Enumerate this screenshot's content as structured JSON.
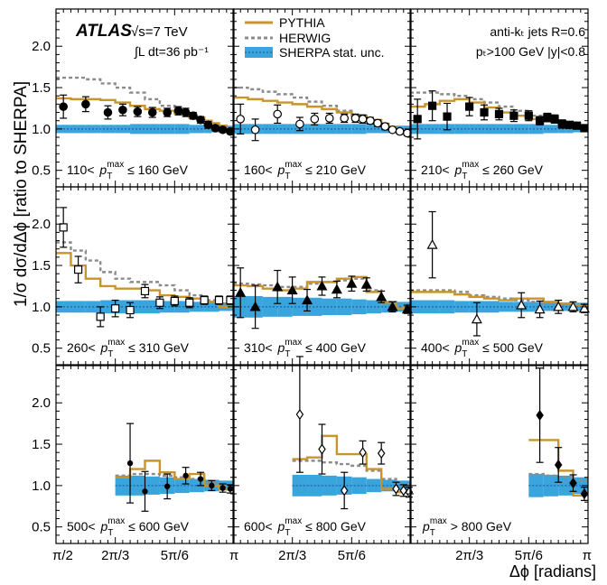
{
  "figure": {
    "ylabel": "1/σ dσ/dΔϕ [ratio to SHERPA]",
    "xlabel": "Δϕ [radians]",
    "atlas": {
      "brand": "ATLAS",
      "energy": "√s=7 TeV",
      "lumi": "∫L dt=36 pb⁻¹"
    },
    "legend": [
      "PYTHIA",
      "HERWIG",
      "SHERPA stat. unc."
    ],
    "jet_info": [
      "anti-kₜ jets R=0.6",
      "pₜ>100 GeV |y|<0.8"
    ],
    "y_ticks": [
      "0.5",
      "1.0",
      "1.5",
      "2.0"
    ],
    "x_ticks": [
      "π/2",
      "2π/3",
      "5π/6",
      "π"
    ]
  },
  "colors": {
    "pythia": "#c8952c",
    "herwig": "#8c8c8c",
    "sherpa_band": "#3aa4dd",
    "sherpa_line": "#1a4f9a"
  },
  "chart_data": {
    "type": "line",
    "x_unit": "radians",
    "xlim": [
      1.5708,
      3.1416
    ],
    "ylim": [
      0.3,
      2.45
    ],
    "panels": [
      {
        "label": "110< pT^max ≤ 160 GeV",
        "marker": "filled-circle",
        "x_start": 1.571,
        "edges": [
          1.571,
          1.702,
          1.833,
          1.963,
          2.094,
          2.225,
          2.356,
          2.487,
          2.618,
          2.749,
          2.88,
          2.945,
          3.01,
          3.076,
          3.142
        ],
        "pythia": [
          1.37,
          1.36,
          1.36,
          1.35,
          1.32,
          1.28,
          1.24,
          1.22,
          1.19,
          1.14,
          1.1,
          1.07,
          1.04,
          1.01
        ],
        "herwig": [
          1.62,
          1.62,
          1.6,
          1.55,
          1.5,
          1.44,
          1.36,
          1.28,
          1.2,
          1.13,
          1.06,
          1.03,
          1.01,
          0.99
        ],
        "band_hw": [
          0.05,
          0.05,
          0.05,
          0.05,
          0.05,
          0.06,
          0.06,
          0.06,
          0.06,
          0.05,
          0.05,
          0.04,
          0.04,
          0.04
        ],
        "points": [
          {
            "x": 1.636,
            "y": 1.27,
            "e": 0.14
          },
          {
            "x": 1.833,
            "y": 1.3,
            "e": 0.09
          },
          {
            "x": 2.029,
            "y": 1.2,
            "e": 0.08
          },
          {
            "x": 2.16,
            "y": 1.23,
            "e": 0.07
          },
          {
            "x": 2.291,
            "y": 1.21,
            "e": 0.06
          },
          {
            "x": 2.422,
            "y": 1.2,
            "e": 0.06
          },
          {
            "x": 2.553,
            "y": 1.2,
            "e": 0.05
          },
          {
            "x": 2.651,
            "y": 1.22,
            "e": 0.05
          },
          {
            "x": 2.716,
            "y": 1.2,
            "e": 0.05
          },
          {
            "x": 2.782,
            "y": 1.16,
            "e": 0.04
          },
          {
            "x": 2.847,
            "y": 1.11,
            "e": 0.04
          },
          {
            "x": 2.913,
            "y": 1.05,
            "e": 0.04
          },
          {
            "x": 2.978,
            "y": 1.01,
            "e": 0.03
          },
          {
            "x": 3.043,
            "y": 0.99,
            "e": 0.03
          },
          {
            "x": 3.109,
            "y": 0.97,
            "e": 0.03
          }
        ]
      },
      {
        "label": "160< pT^max ≤ 210 GeV",
        "marker": "open-circle",
        "x_start": 1.571,
        "edges": [
          1.571,
          1.702,
          1.833,
          1.963,
          2.094,
          2.225,
          2.356,
          2.487,
          2.618,
          2.749,
          2.88,
          2.945,
          3.01,
          3.076,
          3.142
        ],
        "pythia": [
          1.38,
          1.36,
          1.34,
          1.32,
          1.3,
          1.27,
          1.24,
          1.2,
          1.16,
          1.11,
          1.06,
          1.02,
          0.99,
          0.96
        ],
        "herwig": [
          1.5,
          1.48,
          1.45,
          1.42,
          1.38,
          1.33,
          1.28,
          1.22,
          1.16,
          1.1,
          1.04,
          1.0,
          0.97,
          0.95
        ],
        "band_hw": [
          0.06,
          0.06,
          0.06,
          0.06,
          0.06,
          0.06,
          0.06,
          0.06,
          0.06,
          0.05,
          0.05,
          0.04,
          0.04,
          0.04
        ],
        "points": [
          {
            "x": 1.636,
            "y": 1.12,
            "e": 0.18
          },
          {
            "x": 1.767,
            "y": 0.99,
            "e": 0.13
          },
          {
            "x": 1.963,
            "y": 1.18,
            "e": 0.11
          },
          {
            "x": 2.16,
            "y": 1.06,
            "e": 0.08
          },
          {
            "x": 2.291,
            "y": 1.12,
            "e": 0.07
          },
          {
            "x": 2.422,
            "y": 1.13,
            "e": 0.06
          },
          {
            "x": 2.553,
            "y": 1.13,
            "e": 0.05
          },
          {
            "x": 2.651,
            "y": 1.13,
            "e": 0.05
          },
          {
            "x": 2.716,
            "y": 1.12,
            "e": 0.05
          },
          {
            "x": 2.782,
            "y": 1.1,
            "e": 0.04
          },
          {
            "x": 2.847,
            "y": 1.07,
            "e": 0.04
          },
          {
            "x": 2.913,
            "y": 1.03,
            "e": 0.04
          },
          {
            "x": 2.978,
            "y": 0.99,
            "e": 0.03
          },
          {
            "x": 3.043,
            "y": 0.97,
            "e": 0.03
          },
          {
            "x": 3.109,
            "y": 0.95,
            "e": 0.03
          }
        ]
      },
      {
        "label": "210< pT^max ≤ 260 GeV",
        "marker": "filled-square",
        "x_start": 1.571,
        "edges": [
          1.571,
          1.702,
          1.833,
          1.963,
          2.094,
          2.225,
          2.356,
          2.487,
          2.618,
          2.749,
          2.88,
          2.945,
          3.01,
          3.076,
          3.142
        ],
        "pythia": [
          1.27,
          1.3,
          1.34,
          1.36,
          1.32,
          1.26,
          1.2,
          1.16,
          1.12,
          1.09,
          1.06,
          1.04,
          1.02,
          1.0
        ],
        "herwig": [
          1.44,
          1.44,
          1.42,
          1.4,
          1.36,
          1.32,
          1.27,
          1.22,
          1.16,
          1.1,
          1.04,
          1.02,
          1.0,
          0.98
        ],
        "band_hw": [
          0.06,
          0.06,
          0.06,
          0.06,
          0.06,
          0.06,
          0.06,
          0.06,
          0.06,
          0.05,
          0.05,
          0.05,
          0.04,
          0.04
        ],
        "points": [
          {
            "x": 1.636,
            "y": 1.12,
            "e": 0.24
          },
          {
            "x": 1.767,
            "y": 1.28,
            "e": 0.18
          },
          {
            "x": 1.898,
            "y": 1.15,
            "e": 0.16
          },
          {
            "x": 2.094,
            "y": 1.27,
            "e": 0.11
          },
          {
            "x": 2.225,
            "y": 1.2,
            "e": 0.09
          },
          {
            "x": 2.356,
            "y": 1.18,
            "e": 0.07
          },
          {
            "x": 2.487,
            "y": 1.16,
            "e": 0.07
          },
          {
            "x": 2.618,
            "y": 1.16,
            "e": 0.06
          },
          {
            "x": 2.716,
            "y": 1.1,
            "e": 0.05
          },
          {
            "x": 2.782,
            "y": 1.14,
            "e": 0.05
          },
          {
            "x": 2.847,
            "y": 1.12,
            "e": 0.05
          },
          {
            "x": 2.913,
            "y": 1.06,
            "e": 0.05
          },
          {
            "x": 2.978,
            "y": 1.05,
            "e": 0.04
          },
          {
            "x": 3.043,
            "y": 1.04,
            "e": 0.04
          },
          {
            "x": 3.109,
            "y": 1.01,
            "e": 0.04
          }
        ]
      },
      {
        "label": "260< pT^max ≤ 310 GeV",
        "marker": "open-square",
        "x_start": 1.571,
        "edges": [
          1.571,
          1.702,
          1.833,
          1.963,
          2.094,
          2.225,
          2.356,
          2.487,
          2.618,
          2.749,
          2.88,
          3.01,
          3.142
        ],
        "pythia": [
          1.65,
          1.5,
          1.34,
          1.25,
          1.22,
          1.22,
          1.2,
          1.14,
          1.12,
          1.1,
          1.06,
          1.0
        ],
        "herwig": [
          1.78,
          1.68,
          1.56,
          1.42,
          1.34,
          1.3,
          1.3,
          1.26,
          1.2,
          1.14,
          1.08,
          1.04
        ],
        "band_hw": [
          0.07,
          0.07,
          0.07,
          0.08,
          0.08,
          0.08,
          0.08,
          0.07,
          0.07,
          0.06,
          0.06,
          0.05
        ],
        "points": [
          {
            "x": 1.636,
            "y": 1.96,
            "e": 0.24
          },
          {
            "x": 1.767,
            "y": 1.45,
            "e": 0.16
          },
          {
            "x": 1.963,
            "y": 0.88,
            "e": 0.12
          },
          {
            "x": 2.094,
            "y": 0.98,
            "e": 0.1
          },
          {
            "x": 2.225,
            "y": 0.96,
            "e": 0.09
          },
          {
            "x": 2.356,
            "y": 1.19,
            "e": 0.08
          },
          {
            "x": 2.487,
            "y": 1.05,
            "e": 0.07
          },
          {
            "x": 2.618,
            "y": 1.07,
            "e": 0.06
          },
          {
            "x": 2.749,
            "y": 1.05,
            "e": 0.06
          },
          {
            "x": 2.88,
            "y": 1.08,
            "e": 0.05
          },
          {
            "x": 3.01,
            "y": 1.08,
            "e": 0.05
          },
          {
            "x": 3.109,
            "y": 1.08,
            "e": 0.05
          }
        ]
      },
      {
        "label": "310< pT^max ≤ 400 GeV",
        "marker": "filled-triangle",
        "x_start": 1.571,
        "edges": [
          1.571,
          1.702,
          1.833,
          1.963,
          2.094,
          2.225,
          2.356,
          2.487,
          2.618,
          2.749,
          2.88,
          3.01,
          3.142
        ],
        "pythia": [
          1.26,
          1.25,
          1.22,
          1.2,
          1.22,
          1.3,
          1.3,
          1.34,
          1.36,
          1.18,
          1.05,
          0.98
        ],
        "herwig": [
          1.28,
          1.27,
          1.26,
          1.24,
          1.24,
          1.28,
          1.3,
          1.32,
          1.34,
          1.2,
          1.06,
          1.0
        ],
        "band_hw": [
          0.13,
          0.13,
          0.12,
          0.12,
          0.11,
          0.11,
          0.1,
          0.1,
          0.09,
          0.08,
          0.07,
          0.06
        ],
        "points": [
          {
            "x": 1.636,
            "y": 1.17,
            "e": 0.3
          },
          {
            "x": 1.767,
            "y": 1.0,
            "e": 0.26
          },
          {
            "x": 1.963,
            "y": 1.24,
            "e": 0.2
          },
          {
            "x": 2.094,
            "y": 1.2,
            "e": 0.16
          },
          {
            "x": 2.225,
            "y": 1.08,
            "e": 0.13
          },
          {
            "x": 2.356,
            "y": 1.25,
            "e": 0.11
          },
          {
            "x": 2.487,
            "y": 1.21,
            "e": 0.1
          },
          {
            "x": 2.618,
            "y": 1.28,
            "e": 0.09
          },
          {
            "x": 2.749,
            "y": 1.27,
            "e": 0.08
          },
          {
            "x": 2.88,
            "y": 1.12,
            "e": 0.07
          },
          {
            "x": 2.978,
            "y": 1.0,
            "e": 0.06
          },
          {
            "x": 3.109,
            "y": 0.97,
            "e": 0.05
          }
        ]
      },
      {
        "label": "400< pT^max ≤ 500 GeV",
        "marker": "open-triangle",
        "x_start": 1.571,
        "edges": [
          1.571,
          1.702,
          1.833,
          1.963,
          2.094,
          2.225,
          2.356,
          2.487,
          2.618,
          2.749,
          2.88,
          3.01,
          3.142
        ],
        "pythia": [
          1.18,
          1.18,
          1.18,
          1.15,
          1.12,
          1.1,
          1.08,
          1.1,
          1.1,
          1.06,
          1.04,
          1.02
        ],
        "herwig": [
          1.2,
          1.2,
          1.2,
          1.18,
          1.14,
          1.12,
          1.1,
          1.08,
          1.06,
          1.04,
          1.03,
          1.02
        ],
        "band_hw": [
          0.08,
          0.08,
          0.08,
          0.07,
          0.07,
          0.07,
          0.06,
          0.06,
          0.06,
          0.05,
          0.05,
          0.05
        ],
        "points": [
          {
            "x": 1.767,
            "y": 1.75,
            "e": 0.4
          },
          {
            "x": 2.16,
            "y": 0.85,
            "e": 0.2
          },
          {
            "x": 2.553,
            "y": 1.02,
            "e": 0.15
          },
          {
            "x": 2.716,
            "y": 0.97,
            "e": 0.1
          },
          {
            "x": 2.88,
            "y": 1.0,
            "e": 0.08
          },
          {
            "x": 3.01,
            "y": 1.0,
            "e": 0.06
          },
          {
            "x": 3.109,
            "y": 0.98,
            "e": 0.05
          }
        ]
      },
      {
        "label": "500< pT^max ≤ 600 GeV",
        "marker": "filled-circle-small",
        "x_start": 2.094,
        "edges": [
          2.094,
          2.225,
          2.356,
          2.487,
          2.618,
          2.749,
          2.88,
          3.01,
          3.142
        ],
        "pythia": [
          1.1,
          1.2,
          1.3,
          1.16,
          1.08,
          1.14,
          1.0,
          0.96
        ],
        "herwig": [
          1.12,
          1.14,
          1.14,
          1.12,
          1.1,
          1.08,
          1.04,
          1.0
        ],
        "band_hw": [
          0.12,
          0.12,
          0.11,
          0.1,
          0.09,
          0.08,
          0.07,
          0.06
        ],
        "points": [
          {
            "x": 2.225,
            "y": 1.27,
            "e": 0.48
          },
          {
            "x": 2.356,
            "y": 0.93,
            "e": 0.24
          },
          {
            "x": 2.553,
            "y": 0.99,
            "e": 0.15
          },
          {
            "x": 2.716,
            "y": 1.12,
            "e": 0.1
          },
          {
            "x": 2.847,
            "y": 1.08,
            "e": 0.08
          },
          {
            "x": 2.945,
            "y": 1.0,
            "e": 0.06
          },
          {
            "x": 3.043,
            "y": 0.97,
            "e": 0.05
          },
          {
            "x": 3.109,
            "y": 0.96,
            "e": 0.05
          }
        ]
      },
      {
        "label": "600< pT^max ≤ 800 GeV",
        "marker": "open-diamond",
        "x_start": 2.094,
        "edges": [
          2.094,
          2.225,
          2.356,
          2.487,
          2.618,
          2.749,
          2.88,
          3.01,
          3.142
        ],
        "pythia": [
          1.32,
          1.34,
          1.6,
          1.38,
          1.38,
          1.2,
          0.96,
          0.92
        ],
        "herwig": [
          1.3,
          1.3,
          1.28,
          1.26,
          1.24,
          1.18,
          1.08,
          1.0
        ],
        "band_hw": [
          0.13,
          0.13,
          0.12,
          0.11,
          0.1,
          0.08,
          0.07,
          0.06
        ],
        "points": [
          {
            "x": 2.16,
            "y": 1.86,
            "e": 0.7
          },
          {
            "x": 2.356,
            "y": 1.44,
            "e": 0.3
          },
          {
            "x": 2.553,
            "y": 0.94,
            "e": 0.22
          },
          {
            "x": 2.716,
            "y": 1.4,
            "e": 0.14
          },
          {
            "x": 2.88,
            "y": 1.39,
            "e": 0.13
          },
          {
            "x": 3.01,
            "y": 0.96,
            "e": 0.08
          },
          {
            "x": 3.076,
            "y": 0.94,
            "e": 0.07
          },
          {
            "x": 3.125,
            "y": 0.92,
            "e": 0.06
          }
        ]
      },
      {
        "label": "pT^max > 800 GeV",
        "marker": "filled-diamond",
        "x_start": 2.618,
        "edges": [
          2.618,
          2.749,
          2.88,
          3.01,
          3.142
        ],
        "pythia": [
          1.55,
          1.55,
          1.18,
          0.88
        ],
        "herwig": [
          1.14,
          1.12,
          1.1,
          1.06
        ],
        "band_hw": [
          0.14,
          0.13,
          0.12,
          0.1
        ],
        "points": [
          {
            "x": 2.716,
            "y": 1.85,
            "e": 0.57
          },
          {
            "x": 2.88,
            "y": 1.25,
            "e": 0.21
          },
          {
            "x": 3.01,
            "y": 1.03,
            "e": 0.1
          },
          {
            "x": 3.109,
            "y": 0.9,
            "e": 0.08
          }
        ]
      }
    ]
  }
}
